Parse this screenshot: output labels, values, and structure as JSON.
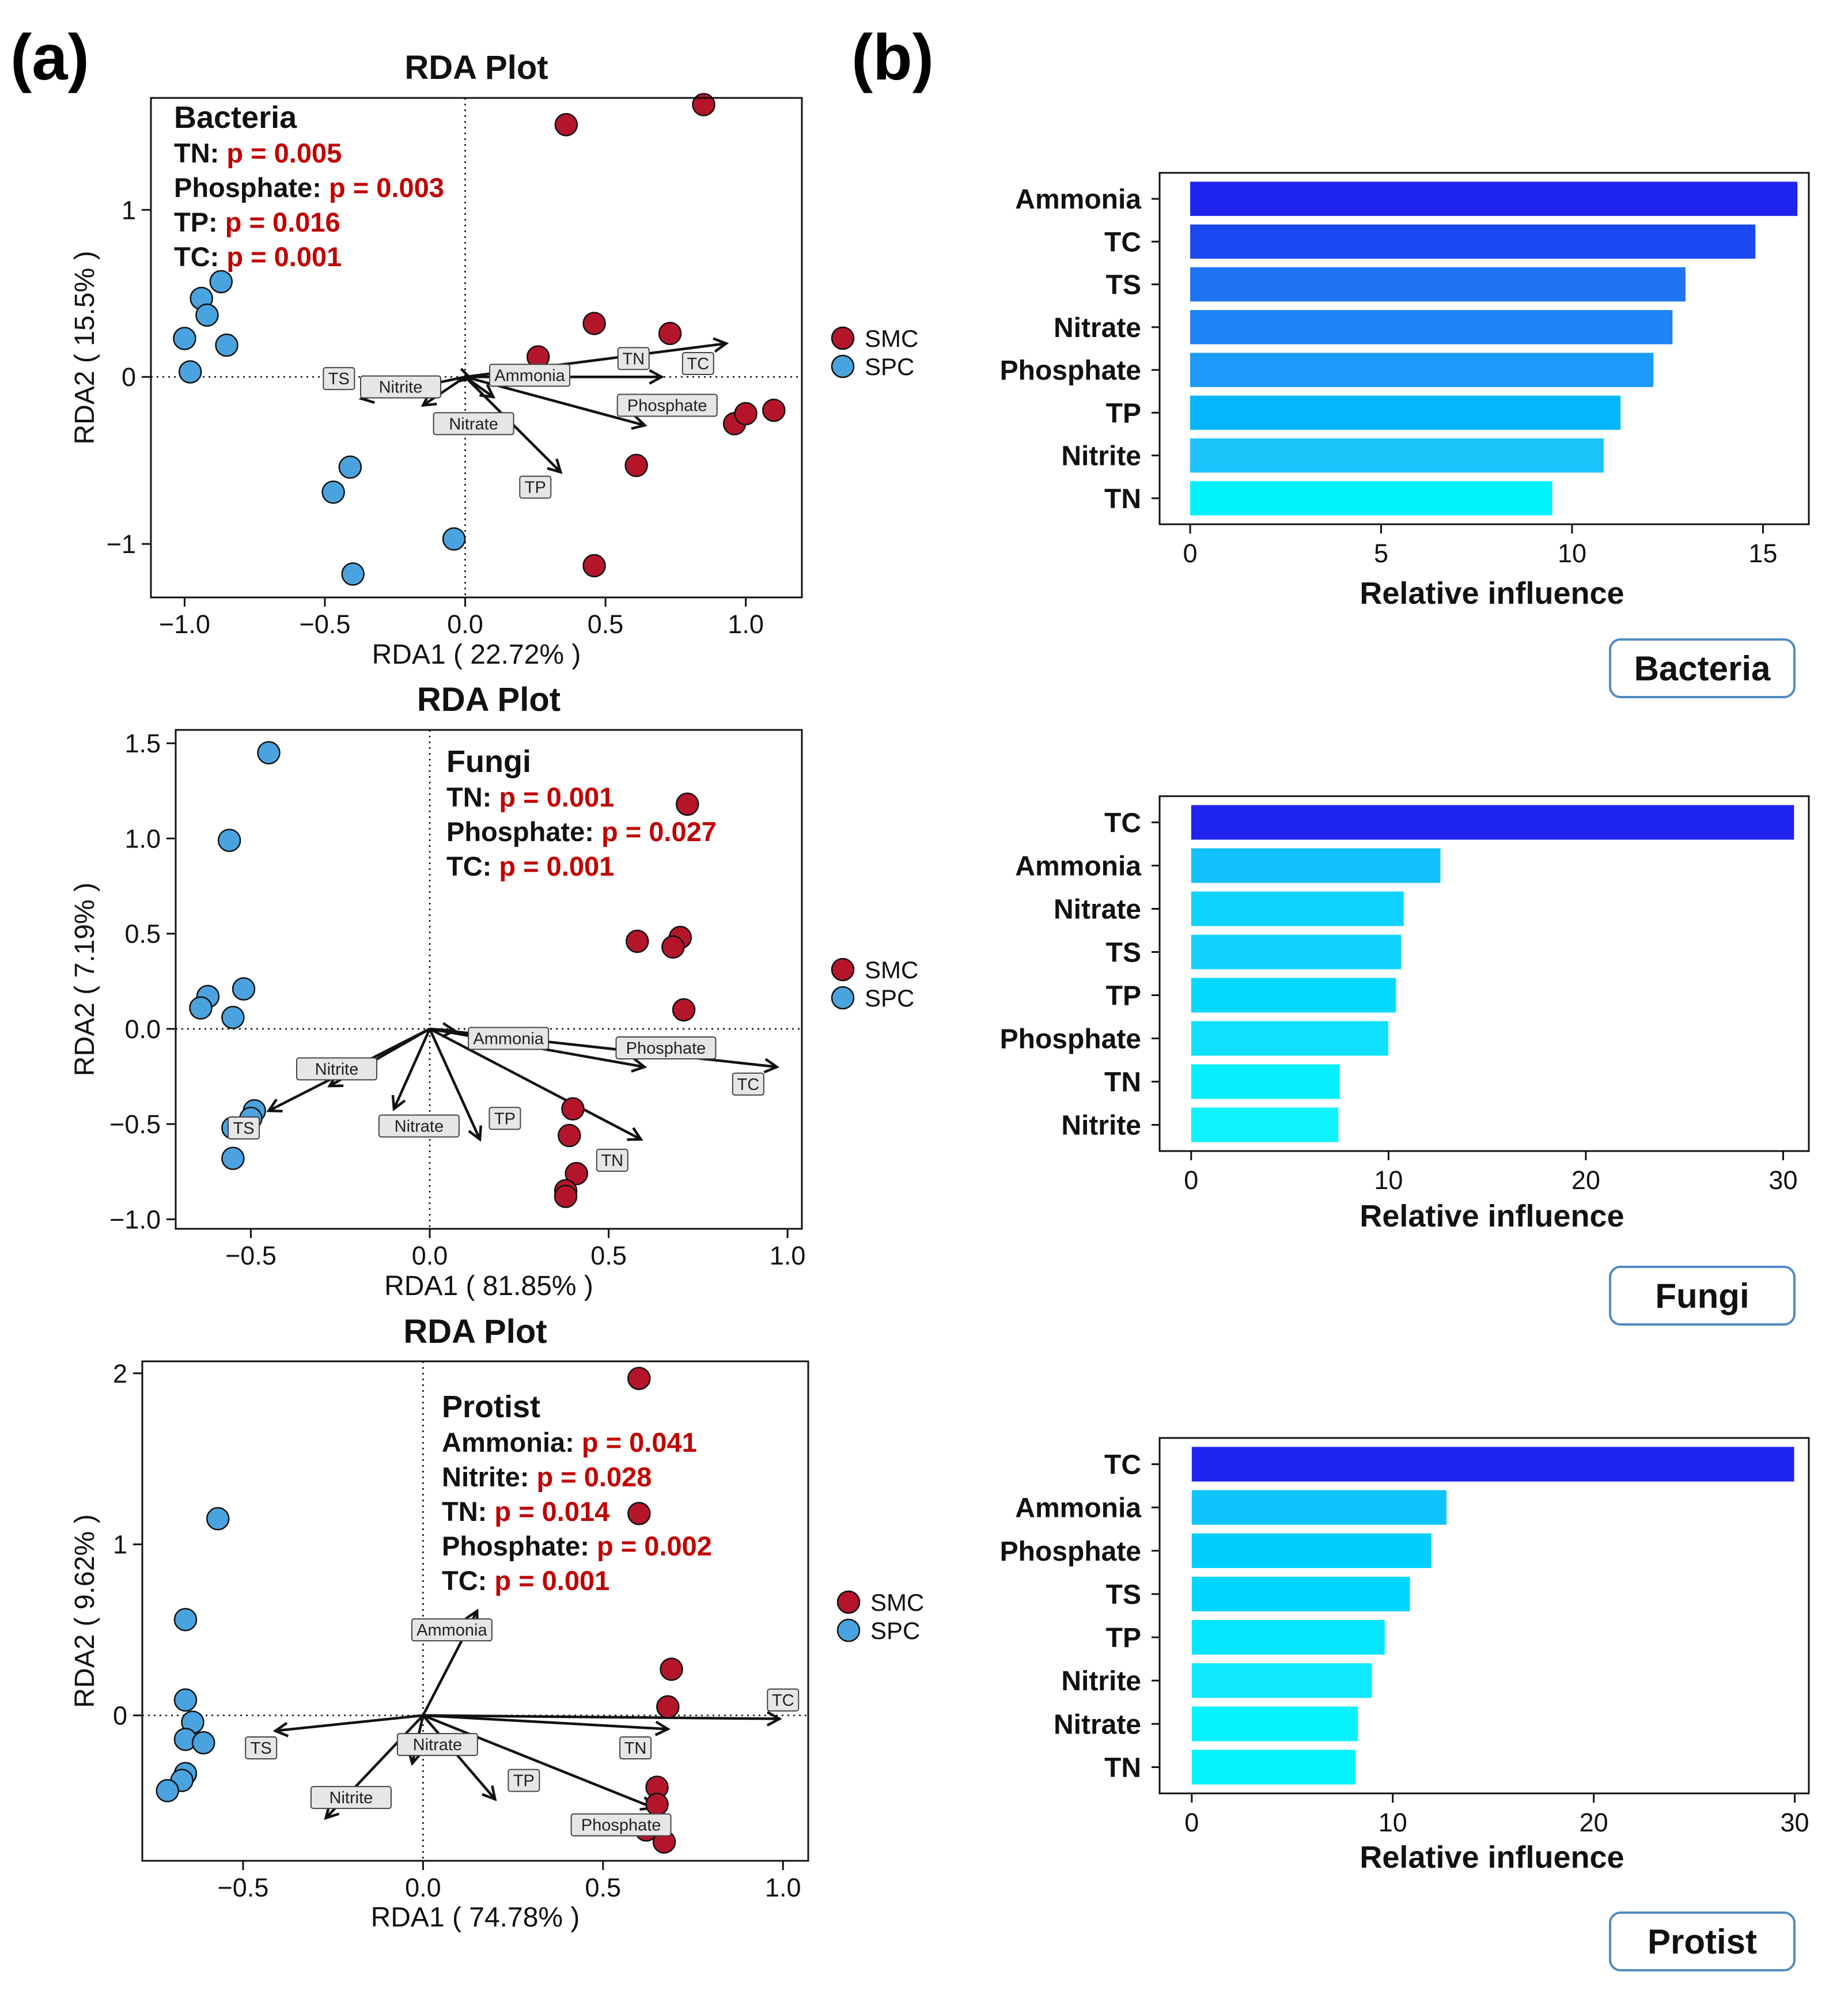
{
  "panel_labels": [
    "(a)",
    "(b)"
  ],
  "chart_data": [
    {
      "type": "scatter",
      "title": "RDA Plot",
      "xlabel": "RDA1 ( 22.72% )",
      "ylabel": "RDA2 ( 15.5% )",
      "xlim": [
        -1.12,
        1.2
      ],
      "ylim": [
        -1.32,
        1.67
      ],
      "xticks": [
        -1.0,
        -0.5,
        0.0,
        0.5,
        1.0
      ],
      "xtick_labels": [
        "−1.0",
        "−0.5",
        "0.0",
        "0.5",
        "1.0"
      ],
      "yticks": [
        -1,
        0,
        1
      ],
      "ytick_labels": [
        "−1",
        "0",
        "1"
      ],
      "annotation": {
        "heading": "Bacteria",
        "lines": [
          {
            "name": "TN:",
            "p": "p = 0.005"
          },
          {
            "name": "Phosphate:",
            "p": "p = 0.003"
          },
          {
            "name": "TP:",
            "p": "p = 0.016"
          },
          {
            "name": "TC:",
            "p": "p = 0.001"
          }
        ],
        "corner": "top-left"
      },
      "series": [
        {
          "name": "SMC",
          "color": "#b5152b",
          "points": [
            [
              0.36,
              1.51
            ],
            [
              0.85,
              1.63
            ],
            [
              0.46,
              0.32
            ],
            [
              0.73,
              0.26
            ],
            [
              0.26,
              0.12
            ],
            [
              0.96,
              -0.28
            ],
            [
              1.0,
              -0.22
            ],
            [
              1.1,
              -0.2
            ],
            [
              0.61,
              -0.53
            ],
            [
              0.46,
              -1.13
            ]
          ]
        },
        {
          "name": "SPC",
          "color": "#4aa3df",
          "points": [
            [
              -0.87,
              0.57
            ],
            [
              -0.94,
              0.47
            ],
            [
              -0.92,
              0.37
            ],
            [
              -1.0,
              0.23
            ],
            [
              -0.85,
              0.19
            ],
            [
              -0.98,
              0.03
            ],
            [
              -0.41,
              -0.54
            ],
            [
              -0.47,
              -0.69
            ],
            [
              -0.04,
              -0.97
            ],
            [
              -0.4,
              -1.18
            ]
          ]
        }
      ],
      "vectors": [
        {
          "name": "Ammonia",
          "x": 0.02,
          "y": -0.01,
          "label_at": [
            0.23,
            0.01
          ]
        },
        {
          "name": "TS",
          "x": -0.37,
          "y": -0.13,
          "label_at": [
            -0.45,
            -0.01
          ]
        },
        {
          "name": "Nitrite",
          "x": -0.15,
          "y": -0.17,
          "label_at": [
            -0.23,
            -0.06
          ]
        },
        {
          "name": "Nitrate",
          "x": 0.1,
          "y": -0.12,
          "label_at": [
            0.03,
            -0.28
          ]
        },
        {
          "name": "TN",
          "x": 0.7,
          "y": 0.0,
          "label_at": [
            0.6,
            0.11
          ]
        },
        {
          "name": "TC",
          "x": 0.93,
          "y": 0.2,
          "label_at": [
            0.83,
            0.08
          ]
        },
        {
          "name": "Phosphate",
          "x": 0.64,
          "y": -0.29,
          "label_at": [
            0.72,
            -0.17
          ]
        },
        {
          "name": "TP",
          "x": 0.34,
          "y": -0.57,
          "label_at": [
            0.25,
            -0.66
          ]
        }
      ],
      "legend": {
        "placement": "right",
        "entries": [
          "SMC",
          "SPC"
        ]
      }
    },
    {
      "type": "scatter",
      "title": "RDA Plot",
      "xlabel": "RDA1 ( 81.85% )",
      "ylabel": "RDA2 ( 7.19% )",
      "xlim": [
        -0.71,
        1.04
      ],
      "ylim": [
        -1.05,
        1.57
      ],
      "xticks": [
        -0.5,
        0.0,
        0.5,
        1.0
      ],
      "xtick_labels": [
        "−0.5",
        "0.0",
        "0.5",
        "1.0"
      ],
      "yticks": [
        -1.0,
        -0.5,
        0.0,
        0.5,
        1.0,
        1.5
      ],
      "ytick_labels": [
        "−1.0",
        "−0.5",
        "0.0",
        "0.5",
        "1.0",
        "1.5"
      ],
      "annotation": {
        "heading": "Fungi",
        "lines": [
          {
            "name": "TN:",
            "p": "p = 0.001"
          },
          {
            "name": "Phosphate:",
            "p": "p = 0.027"
          },
          {
            "name": "TC:",
            "p": "p = 0.001"
          }
        ],
        "corner": "top-center"
      },
      "series": [
        {
          "name": "SMC",
          "color": "#b5152b",
          "points": [
            [
              0.72,
              1.18
            ],
            [
              0.58,
              0.46
            ],
            [
              0.7,
              0.48
            ],
            [
              0.68,
              0.43
            ],
            [
              0.71,
              0.1
            ],
            [
              0.4,
              -0.42
            ],
            [
              0.39,
              -0.56
            ],
            [
              0.41,
              -0.76
            ],
            [
              0.38,
              -0.85
            ],
            [
              0.38,
              -0.88
            ]
          ]
        },
        {
          "name": "SPC",
          "color": "#4aa3df",
          "points": [
            [
              -0.45,
              1.45
            ],
            [
              -0.56,
              0.99
            ],
            [
              -0.62,
              0.17
            ],
            [
              -0.52,
              0.21
            ],
            [
              -0.64,
              0.11
            ],
            [
              -0.55,
              0.06
            ],
            [
              -0.49,
              -0.43
            ],
            [
              -0.5,
              -0.47
            ],
            [
              -0.55,
              -0.52
            ],
            [
              -0.55,
              -0.68
            ]
          ]
        }
      ],
      "vectors": [
        {
          "name": "Ammonia",
          "x": 0.07,
          "y": -0.01,
          "label_at": [
            0.22,
            -0.05
          ]
        },
        {
          "name": "Phosphate",
          "x": 0.6,
          "y": -0.2,
          "label_at": [
            0.66,
            -0.1
          ]
        },
        {
          "name": "TC",
          "x": 0.97,
          "y": -0.2,
          "label_at": [
            0.89,
            -0.29
          ]
        },
        {
          "name": "Nitrite",
          "x": -0.28,
          "y": -0.3,
          "label_at": [
            -0.26,
            -0.21
          ]
        },
        {
          "name": "TS",
          "x": -0.45,
          "y": -0.43,
          "label_at": [
            -0.52,
            -0.52
          ]
        },
        {
          "name": "Nitrate",
          "x": -0.1,
          "y": -0.42,
          "label_at": [
            -0.03,
            -0.51
          ]
        },
        {
          "name": "TP",
          "x": 0.14,
          "y": -0.58,
          "label_at": [
            0.21,
            -0.47
          ]
        },
        {
          "name": "TN",
          "x": 0.59,
          "y": -0.58,
          "label_at": [
            0.51,
            -0.69
          ]
        }
      ],
      "legend": {
        "placement": "right",
        "entries": [
          "SMC",
          "SPC"
        ]
      }
    },
    {
      "type": "scatter",
      "title": "RDA Plot",
      "xlabel": "RDA1 ( 74.78% )",
      "ylabel": "RDA2 ( 9.62% )",
      "xlim": [
        -0.78,
        1.07
      ],
      "ylim": [
        -0.85,
        2.07
      ],
      "xticks": [
        -0.5,
        0.0,
        0.5,
        1.0
      ],
      "xtick_labels": [
        "−0.5",
        "0.0",
        "0.5",
        "1.0"
      ],
      "yticks": [
        0,
        1,
        2
      ],
      "ytick_labels": [
        "0",
        "1",
        "2"
      ],
      "annotation": {
        "heading": "Protist",
        "lines": [
          {
            "name": "Ammonia:",
            "p": "p = 0.041"
          },
          {
            "name": "Nitrite:",
            "p": "p = 0.028"
          },
          {
            "name": "TN:",
            "p": "p = 0.014"
          },
          {
            "name": "Phosphate:",
            "p": "p = 0.002"
          },
          {
            "name": "TC:",
            "p": "p = 0.001"
          }
        ],
        "corner": "top-center"
      },
      "series": [
        {
          "name": "SMC",
          "color": "#b5152b",
          "points": [
            [
              0.6,
              1.97
            ],
            [
              0.6,
              1.18
            ],
            [
              0.69,
              0.27
            ],
            [
              0.68,
              0.05
            ],
            [
              0.65,
              -0.42
            ],
            [
              0.65,
              -0.52
            ],
            [
              0.62,
              -0.67
            ],
            [
              0.67,
              -0.74
            ]
          ]
        },
        {
          "name": "SPC",
          "color": "#4aa3df",
          "points": [
            [
              -0.57,
              1.15
            ],
            [
              -0.66,
              0.56
            ],
            [
              -0.66,
              0.09
            ],
            [
              -0.64,
              -0.04
            ],
            [
              -0.66,
              -0.14
            ],
            [
              -0.61,
              -0.16
            ],
            [
              -0.66,
              -0.34
            ],
            [
              -0.67,
              -0.38
            ],
            [
              -0.71,
              -0.44
            ]
          ]
        }
      ],
      "vectors": [
        {
          "name": "Ammonia",
          "x": 0.15,
          "y": 0.61,
          "label_at": [
            0.08,
            0.5
          ]
        },
        {
          "name": "TC",
          "x": 0.99,
          "y": -0.02,
          "label_at": [
            1.0,
            0.09
          ]
        },
        {
          "name": "TN",
          "x": 0.68,
          "y": -0.08,
          "label_at": [
            0.59,
            -0.19
          ]
        },
        {
          "name": "TS",
          "x": -0.41,
          "y": -0.09,
          "label_at": [
            -0.45,
            -0.19
          ]
        },
        {
          "name": "Nitrite",
          "x": -0.27,
          "y": -0.6,
          "label_at": [
            -0.2,
            -0.48
          ]
        },
        {
          "name": "Nitrate",
          "x": -0.03,
          "y": -0.28,
          "label_at": [
            0.04,
            -0.17
          ]
        },
        {
          "name": "TP",
          "x": 0.2,
          "y": -0.49,
          "label_at": [
            0.28,
            -0.38
          ]
        },
        {
          "name": "Phosphate",
          "x": 0.64,
          "y": -0.54,
          "label_at": [
            0.55,
            -0.64
          ]
        }
      ],
      "legend": {
        "placement": "right",
        "entries": [
          "SMC",
          "SPC"
        ]
      }
    },
    {
      "type": "bar",
      "orientation": "horizontal",
      "title": "Bacteria",
      "xlabel": "Relative influence",
      "xlim": [
        -0.8,
        16.2
      ],
      "xticks": [
        0,
        5,
        10,
        15
      ],
      "categories": [
        "Ammonia",
        "TC",
        "TS",
        "Nitrate",
        "Phosphate",
        "TP",
        "Nitrite",
        "TN"
      ],
      "values": [
        15.9,
        14.8,
        12.97,
        12.63,
        12.13,
        11.27,
        10.83,
        9.48
      ],
      "colors": [
        "#1f23ee",
        "#1a49f3",
        "#1f74f4",
        "#1f82f6",
        "#1b9af9",
        "#05b6fd",
        "#1ac4fb",
        "#00f3fd"
      ]
    },
    {
      "type": "bar",
      "orientation": "horizontal",
      "title": "Fungi",
      "xlabel": "Relative influence",
      "xlim": [
        -1.6,
        31.3
      ],
      "xticks": [
        0,
        10,
        20,
        30
      ],
      "categories": [
        "TC",
        "Ammonia",
        "Nitrate",
        "TS",
        "TP",
        "Phosphate",
        "TN",
        "Nitrite"
      ],
      "values": [
        30.55,
        12.63,
        10.77,
        10.64,
        10.38,
        9.99,
        7.53,
        7.46
      ],
      "colors": [
        "#1f23ee",
        "#10c1fd",
        "#0fd3ff",
        "#0fd3fd",
        "#04d8ff",
        "#0fe1ff",
        "#05efff",
        "#0ff3ff"
      ]
    },
    {
      "type": "bar",
      "orientation": "horizontal",
      "title": "Protist",
      "xlabel": "Relative influence",
      "xlim": [
        -1.6,
        30.7
      ],
      "xticks": [
        0,
        10,
        20,
        30
      ],
      "categories": [
        "TC",
        "Ammonia",
        "Phosphate",
        "TS",
        "TP",
        "Nitrite",
        "Nitrate",
        "TN"
      ],
      "values": [
        29.97,
        12.67,
        11.92,
        10.85,
        9.6,
        8.96,
        8.27,
        8.14
      ],
      "colors": [
        "#1f23ee",
        "#0fc4fd",
        "#00cffd",
        "#00d6ff",
        "#05e5ff",
        "#0fe9ff",
        "#04f3ff",
        "#04f3ff"
      ]
    }
  ]
}
